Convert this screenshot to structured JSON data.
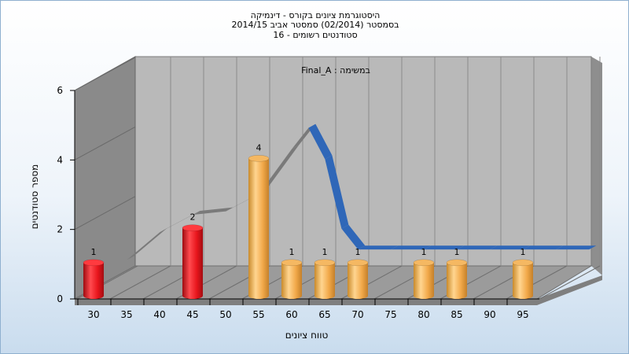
{
  "chart_data": {
    "type": "bar",
    "title": [
      "היסטוגרמת ציונים בקורס - דינמיקה",
      "בסמסטר (02/2014) סמסטר אביב 2014/15",
      "סטודנטים רשומים - 16"
    ],
    "annotation": "במשימה : Final_A",
    "xlabel": "טווח ציונים",
    "ylabel": "מספר סטודנטים",
    "ylim": [
      0,
      6
    ],
    "yticks": [
      0,
      2,
      4,
      6
    ],
    "x_ticks": [
      "30",
      "35",
      "40",
      "45",
      "50",
      "55",
      "60",
      "65",
      "70",
      "75",
      "80",
      "85",
      "90",
      "95"
    ],
    "bars": [
      {
        "x": 30,
        "value": 1,
        "color": "red"
      },
      {
        "x": 45,
        "value": 2,
        "color": "red"
      },
      {
        "x": 55,
        "value": 4,
        "color": "orange"
      },
      {
        "x": 60,
        "value": 1,
        "color": "orange"
      },
      {
        "x": 65,
        "value": 1,
        "color": "orange"
      },
      {
        "x": 70,
        "value": 1,
        "color": "orange"
      },
      {
        "x": 80,
        "value": 1,
        "color": "orange"
      },
      {
        "x": 85,
        "value": 1,
        "color": "orange"
      },
      {
        "x": 95,
        "value": 1,
        "color": "orange"
      }
    ],
    "curve": [
      {
        "x": 30,
        "y": 0.6
      },
      {
        "x": 35,
        "y": 1.4
      },
      {
        "x": 40,
        "y": 1.9
      },
      {
        "x": 45,
        "y": 2.0
      },
      {
        "x": 50,
        "y": 2.5
      },
      {
        "x": 55,
        "y": 3.8
      },
      {
        "x": 57.5,
        "y": 4.4
      },
      {
        "x": 60,
        "y": 3.5
      },
      {
        "x": 62.5,
        "y": 1.5
      },
      {
        "x": 65,
        "y": 0.9
      },
      {
        "x": 70,
        "y": 0.9
      },
      {
        "x": 75,
        "y": 0.9
      },
      {
        "x": 80,
        "y": 0.9
      },
      {
        "x": 85,
        "y": 0.9
      },
      {
        "x": 90,
        "y": 0.9
      },
      {
        "x": 95,
        "y": 0.9
      },
      {
        "x": 100,
        "y": 0.9
      }
    ],
    "colors": {
      "bar_red": "#e8151c",
      "bar_orange": "#f2a94a",
      "curve_top": "#2f67b8",
      "curve_side": "#7a7a7a",
      "wall_back": "#b9b9b9",
      "wall_left": "#8a8a8a",
      "floor": "#9b9b9b"
    },
    "grid": true,
    "legend": "none"
  }
}
